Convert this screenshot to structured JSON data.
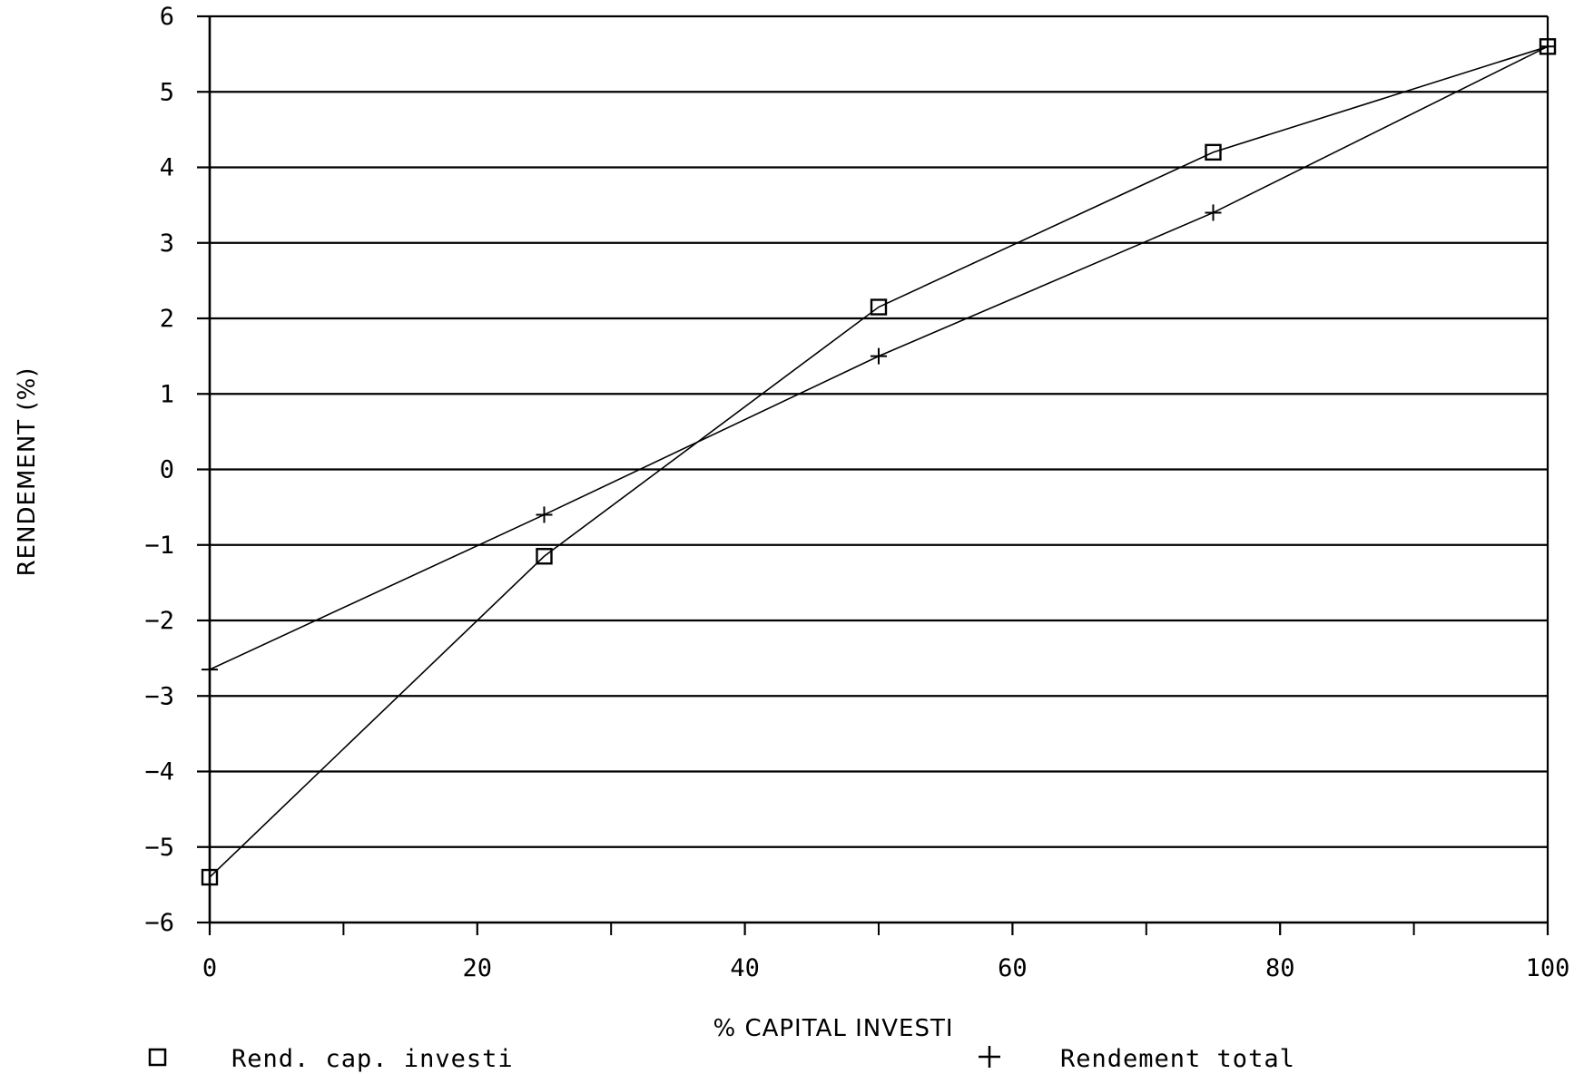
{
  "chart_data": {
    "type": "line",
    "title": "",
    "xlabel": "% CAPITAL INVESTI",
    "ylabel": "RENDEMENT   (%)",
    "xlim": [
      0,
      100
    ],
    "ylim": [
      -6,
      6
    ],
    "x_ticks": [
      0,
      20,
      40,
      60,
      80,
      100
    ],
    "x_minor_ticks": [
      10,
      30,
      50,
      70,
      90
    ],
    "y_ticks": [
      -6,
      -5,
      -4,
      -3,
      -2,
      -1,
      0,
      1,
      2,
      3,
      4,
      5,
      6
    ],
    "x_tick_labels": [
      "0",
      "20",
      "40",
      "60",
      "80",
      "100"
    ],
    "y_tick_labels": [
      "-6",
      "-5",
      "-4",
      "-3",
      "-2",
      "-1",
      "0",
      "1",
      "2",
      "3",
      "4",
      "5",
      "6"
    ],
    "grid": "horizontal",
    "legend_position": "bottom",
    "x": [
      0,
      25,
      50,
      75,
      100
    ],
    "series": [
      {
        "name": "Rend. cap. investi",
        "marker": "square",
        "values": [
          -5.4,
          -1.15,
          2.15,
          4.2,
          5.6
        ]
      },
      {
        "name": "Rendement total",
        "marker": "plus",
        "values": [
          -2.65,
          -0.6,
          1.5,
          3.4,
          5.6
        ]
      }
    ]
  }
}
